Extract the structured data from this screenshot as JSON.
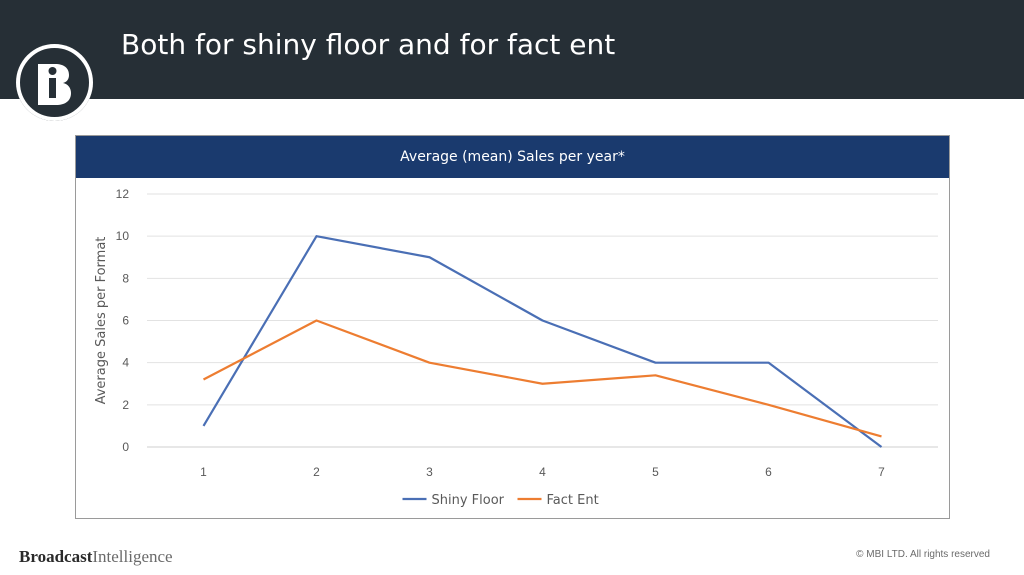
{
  "slide": {
    "title": "Both for shiny floor and for fact ent",
    "logo_letter": "i",
    "footer_brand_bold": "Broadcast",
    "footer_brand_light": "Intelligence",
    "copyright": "© MBI LTD. All rights reserved"
  },
  "chart_data": {
    "type": "line",
    "title": "Average (mean) Sales per year*",
    "xlabel": "",
    "ylabel": "Average Sales per Format",
    "categories": [
      "1",
      "2",
      "3",
      "4",
      "5",
      "6",
      "7"
    ],
    "series": [
      {
        "name": "Shiny Floor",
        "color": "#4a6fb5",
        "values": [
          1,
          10,
          9,
          6,
          4,
          4,
          0
        ]
      },
      {
        "name": "Fact Ent",
        "color": "#ed7d31",
        "values": [
          3.2,
          6,
          4,
          3,
          3.4,
          2,
          0.5
        ]
      }
    ],
    "ylim": [
      0,
      12
    ],
    "yticks": [
      0,
      2,
      4,
      6,
      8,
      10,
      12
    ],
    "grid": true,
    "legend": "bottom"
  },
  "colors": {
    "header_bg": "#262f36",
    "banner_bg": "#1a3a6e"
  }
}
